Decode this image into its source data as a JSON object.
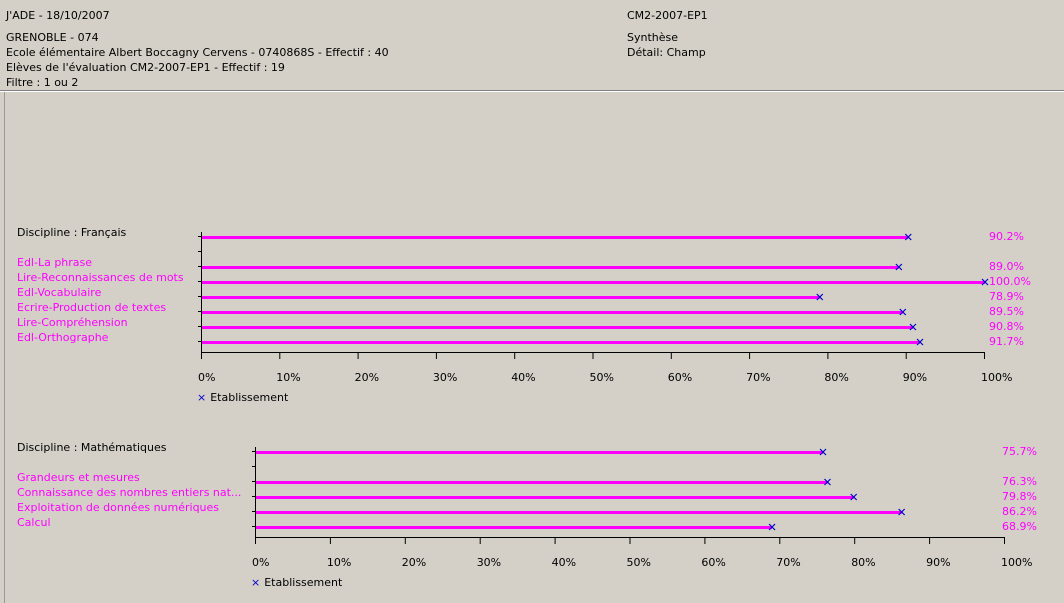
{
  "header": {
    "app_date": "J'ADE - 18/10/2007",
    "code": "CM2-2007-EP1",
    "circonscription": "GRENOBLE - 074",
    "synthese": "Synthèse",
    "ecole": "Ecole élémentaire Albert Boccagny Cervens -  0740868S - Effectif : 40",
    "detail": "Détail: Champ",
    "eleves": " Elèves de l'évaluation CM2-2007-EP1 - Effectif : 19",
    "filtre": "Filtre : 1 ou 2"
  },
  "chart_data": [
    {
      "type": "bar",
      "title": "Discipline : Français",
      "legend": "Etablissement",
      "xlim": [
        0,
        100
      ],
      "ticks": [
        "0%",
        "10%",
        "20%",
        "30%",
        "40%",
        "50%",
        "60%",
        "70%",
        "80%",
        "90%",
        "100%"
      ],
      "total": {
        "value": 90.2,
        "label": "90.2%"
      },
      "categories": [
        "Edl-La  phrase",
        "Lire-Reconnaissances de mots",
        "Edl-Vocabulaire",
        "Ecrire-Production de textes",
        "Lire-Compréhension",
        "Edl-Orthographe"
      ],
      "values": [
        89.0,
        100.0,
        78.9,
        89.5,
        90.8,
        91.7
      ],
      "value_labels": [
        "89.0%",
        "100.0%",
        "78.9%",
        "89.5%",
        "90.8%",
        "91.7%"
      ],
      "colors": {
        "bar": "#ff00ff",
        "marker": "#0000cc"
      }
    },
    {
      "type": "bar",
      "title": "Discipline : Mathématiques",
      "legend": "Etablissement",
      "xlim": [
        0,
        100
      ],
      "ticks": [
        "0%",
        "10%",
        "20%",
        "30%",
        "40%",
        "50%",
        "60%",
        "70%",
        "80%",
        "90%",
        "100%"
      ],
      "total": {
        "value": 75.7,
        "label": "75.7%"
      },
      "categories": [
        "Grandeurs et mesures",
        "Connaissance des nombres entiers nat...",
        "Exploitation de données numériques",
        "Calcul"
      ],
      "values": [
        76.3,
        79.8,
        86.2,
        68.9
      ],
      "value_labels": [
        "76.3%",
        "79.8%",
        "86.2%",
        "68.9%"
      ],
      "colors": {
        "bar": "#ff00ff",
        "marker": "#0000cc"
      }
    }
  ]
}
